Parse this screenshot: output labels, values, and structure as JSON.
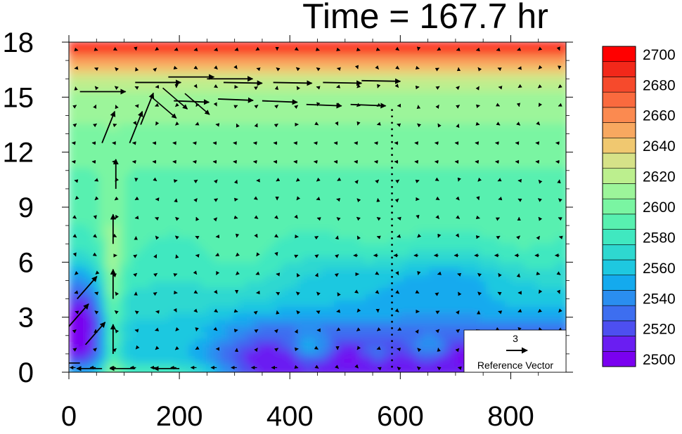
{
  "chart_data": {
    "type": "heatmap",
    "title": "Time = 167.7 hr",
    "xlabel": "",
    "ylabel": "",
    "xlim": [
      0,
      900
    ],
    "ylim": [
      0,
      18
    ],
    "x_ticks": [
      0,
      200,
      400,
      600,
      800
    ],
    "x_tick_labels": [
      "0",
      "200",
      "400",
      "600",
      "800"
    ],
    "y_ticks": [
      0,
      3,
      6,
      9,
      12,
      15,
      18
    ],
    "y_tick_labels": [
      "0",
      "3",
      "6",
      "9",
      "12",
      "15",
      "18"
    ],
    "grid": false,
    "colorbar": {
      "levels": [
        2500,
        2510,
        2520,
        2530,
        2540,
        2550,
        2560,
        2570,
        2580,
        2590,
        2600,
        2610,
        2620,
        2630,
        2640,
        2650,
        2660,
        2670,
        2680,
        2690,
        2700
      ],
      "labels": [
        "2500",
        "2520",
        "2540",
        "2560",
        "2580",
        "2600",
        "2620",
        "2640",
        "2660",
        "2680",
        "2700"
      ],
      "colors": [
        "#7a00f0",
        "#6a1ef2",
        "#4d4ff0",
        "#3d6ef0",
        "#2a8ef0",
        "#14aaee",
        "#1ec8e0",
        "#2ed8d0",
        "#40e8c0",
        "#58f0b0",
        "#7af5a2",
        "#9cf59a",
        "#bcef8e",
        "#d6e288",
        "#f0c870",
        "#f8a860",
        "#fb8a50",
        "#fa6a3e",
        "#f64a2c",
        "#f2281a",
        "#ff0000"
      ]
    },
    "reference_vector": {
      "magnitude": "3",
      "label": "Reference Vector"
    },
    "field_description": "Contour field: red >2700 near top (16.5-18); yellow-green 2620-2640 around 15-16.5; green 2600-2620 band 12-15; cyan-green 2580-2600 from 7-12; blue 2540-2570 at 4-7; purple 2490-2510 low layer 0-3 east of x=250, and purple region x<60 at 0-5; yellow column at x~70-90 near surface up to ~9",
    "vector_field_sample": [
      {
        "x": 20,
        "y": 2.5,
        "u": 0.6,
        "v": 1.6
      },
      {
        "x": 40,
        "y": 4.0,
        "u": 0.4,
        "v": 1.2
      },
      {
        "x": 80,
        "y": 8.0,
        "u": 0.0,
        "v": 3.5
      },
      {
        "x": 140,
        "y": 13.0,
        "u": 0.9,
        "v": 2.8
      },
      {
        "x": 200,
        "y": 15.9,
        "u": 2.8,
        "v": 0.1
      },
      {
        "x": 300,
        "y": 15.9,
        "u": 3.0,
        "v": -0.2
      },
      {
        "x": 450,
        "y": 15.7,
        "u": 3.2,
        "v": 0.0
      },
      {
        "x": 300,
        "y": 14.7,
        "u": 2.6,
        "v": 0.0
      },
      {
        "x": 500,
        "y": 14.7,
        "u": 2.8,
        "v": 0.0
      },
      {
        "x": 100,
        "y": 0.2,
        "u": 2.8,
        "v": 0.0
      },
      {
        "x": 300,
        "y": 0.2,
        "u": -1.2,
        "v": 0.0
      },
      {
        "x": 700,
        "y": 6.0,
        "u": -0.8,
        "v": 0.0
      }
    ]
  }
}
